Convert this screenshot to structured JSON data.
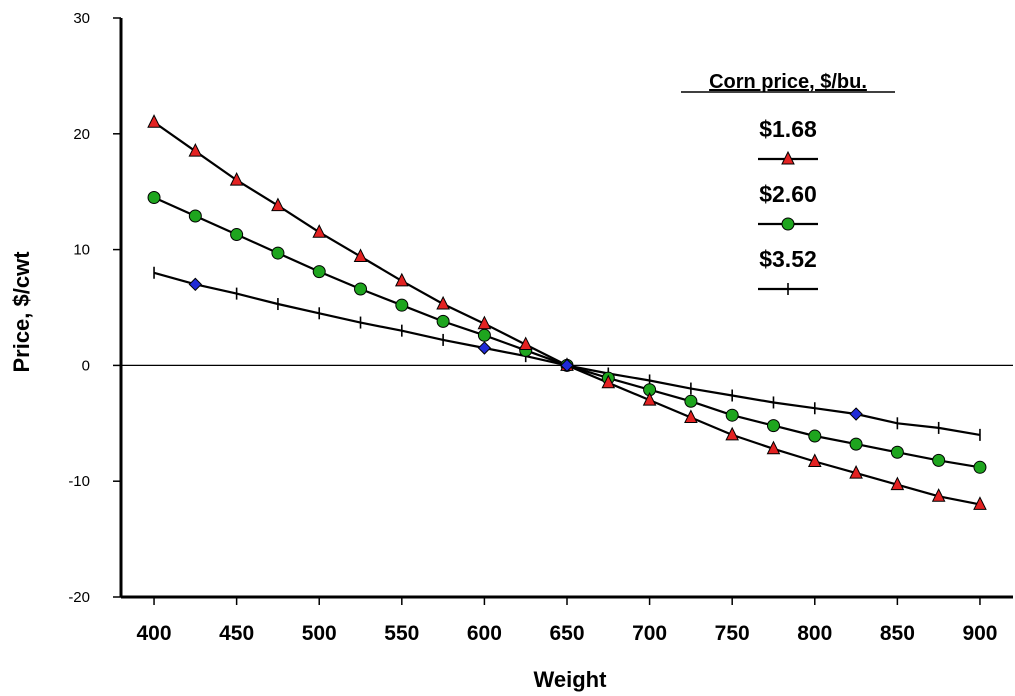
{
  "chart_data": {
    "type": "line",
    "xlabel": "Weight",
    "ylabel": "Price, $/cwt",
    "xlim": [
      380,
      920
    ],
    "ylim": [
      -20,
      30
    ],
    "xticks": [
      "400",
      "450",
      "500",
      "550",
      "600",
      "650",
      "700",
      "750",
      "800",
      "850",
      "900"
    ],
    "yticks": [
      "30",
      "20",
      "10",
      "0",
      "-10",
      "-20"
    ],
    "grid": false,
    "legend_position": "top-right",
    "legend_title": "Corn price, $/bu.",
    "x": [
      400,
      425,
      450,
      475,
      500,
      525,
      550,
      575,
      600,
      625,
      650,
      675,
      700,
      725,
      750,
      775,
      800,
      825,
      850,
      875,
      900
    ],
    "series": [
      {
        "name": "$1.68",
        "marker": "triangle",
        "marker_color": "#e32222",
        "values": [
          21.0,
          18.5,
          16.0,
          13.8,
          11.5,
          9.4,
          7.3,
          5.3,
          3.6,
          1.8,
          0.0,
          -1.5,
          -3.0,
          -4.5,
          -6.0,
          -7.2,
          -8.3,
          -9.3,
          -10.3,
          -11.3,
          -12.0
        ]
      },
      {
        "name": "$2.60",
        "marker": "circle",
        "marker_color": "#1ea51e",
        "values": [
          14.5,
          12.9,
          11.3,
          9.7,
          8.1,
          6.6,
          5.2,
          3.8,
          2.6,
          1.3,
          0.0,
          -1.1,
          -2.1,
          -3.1,
          -4.3,
          -5.2,
          -6.1,
          -6.8,
          -7.5,
          -8.2,
          -8.8
        ]
      },
      {
        "name": "$3.52",
        "marker": "plus",
        "marker_color": "#000000",
        "values": [
          8.0,
          7.0,
          6.2,
          5.3,
          4.5,
          3.7,
          3.0,
          2.2,
          1.5,
          0.8,
          0.0,
          -0.7,
          -1.3,
          -2.0,
          -2.6,
          -3.2,
          -3.7,
          -4.2,
          -5.0,
          -5.4,
          -6.0
        ]
      }
    ],
    "highlighted_points": {
      "marker": "diamond",
      "color": "#1f2ad6",
      "points": [
        {
          "x": 425,
          "y": 7.0
        },
        {
          "x": 600,
          "y": 1.5
        },
        {
          "x": 650,
          "y": 0.0
        },
        {
          "x": 825,
          "y": -4.2
        }
      ]
    }
  }
}
